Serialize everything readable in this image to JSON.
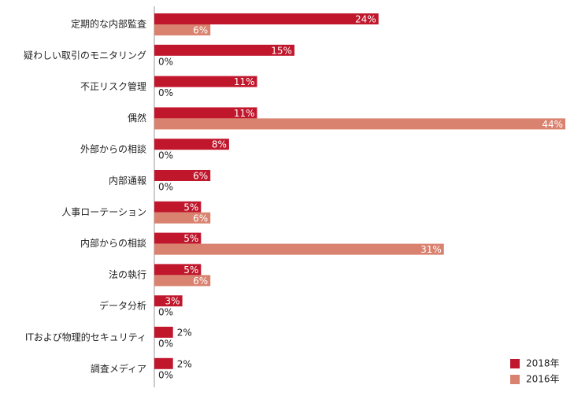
{
  "chart_data": {
    "type": "bar",
    "orientation": "horizontal",
    "categories": [
      "定期的な内部監査",
      "疑わしい取引のモニタリング",
      "不正リスク管理",
      "偶然",
      "外部からの相談",
      "内部通報",
      "人事ローテーション",
      "内部からの相談",
      "法の執行",
      "データ分析",
      "ITおよび物理的セキュリティ",
      "調査メディア"
    ],
    "series": [
      {
        "name": "2018年",
        "color": "#c0172c",
        "values": [
          24,
          15,
          11,
          11,
          8,
          6,
          5,
          5,
          5,
          3,
          2,
          2
        ],
        "value_labels": [
          "24%",
          "15%",
          "11%",
          "11%",
          "8%",
          "6%",
          "5%",
          "5%",
          "5%",
          "3%",
          "2%",
          "2%"
        ]
      },
      {
        "name": "2016年",
        "color": "#d9826f",
        "values": [
          6,
          0,
          0,
          44,
          0,
          0,
          6,
          31,
          6,
          0,
          0,
          0
        ],
        "value_labels": [
          "6%",
          "0%",
          "0%",
          "44%",
          "0%",
          "0%",
          "6%",
          "31%",
          "6%",
          "0%",
          "0%",
          "0%"
        ]
      }
    ],
    "xlim": [
      0,
      44
    ],
    "legend": "bottom-right"
  }
}
